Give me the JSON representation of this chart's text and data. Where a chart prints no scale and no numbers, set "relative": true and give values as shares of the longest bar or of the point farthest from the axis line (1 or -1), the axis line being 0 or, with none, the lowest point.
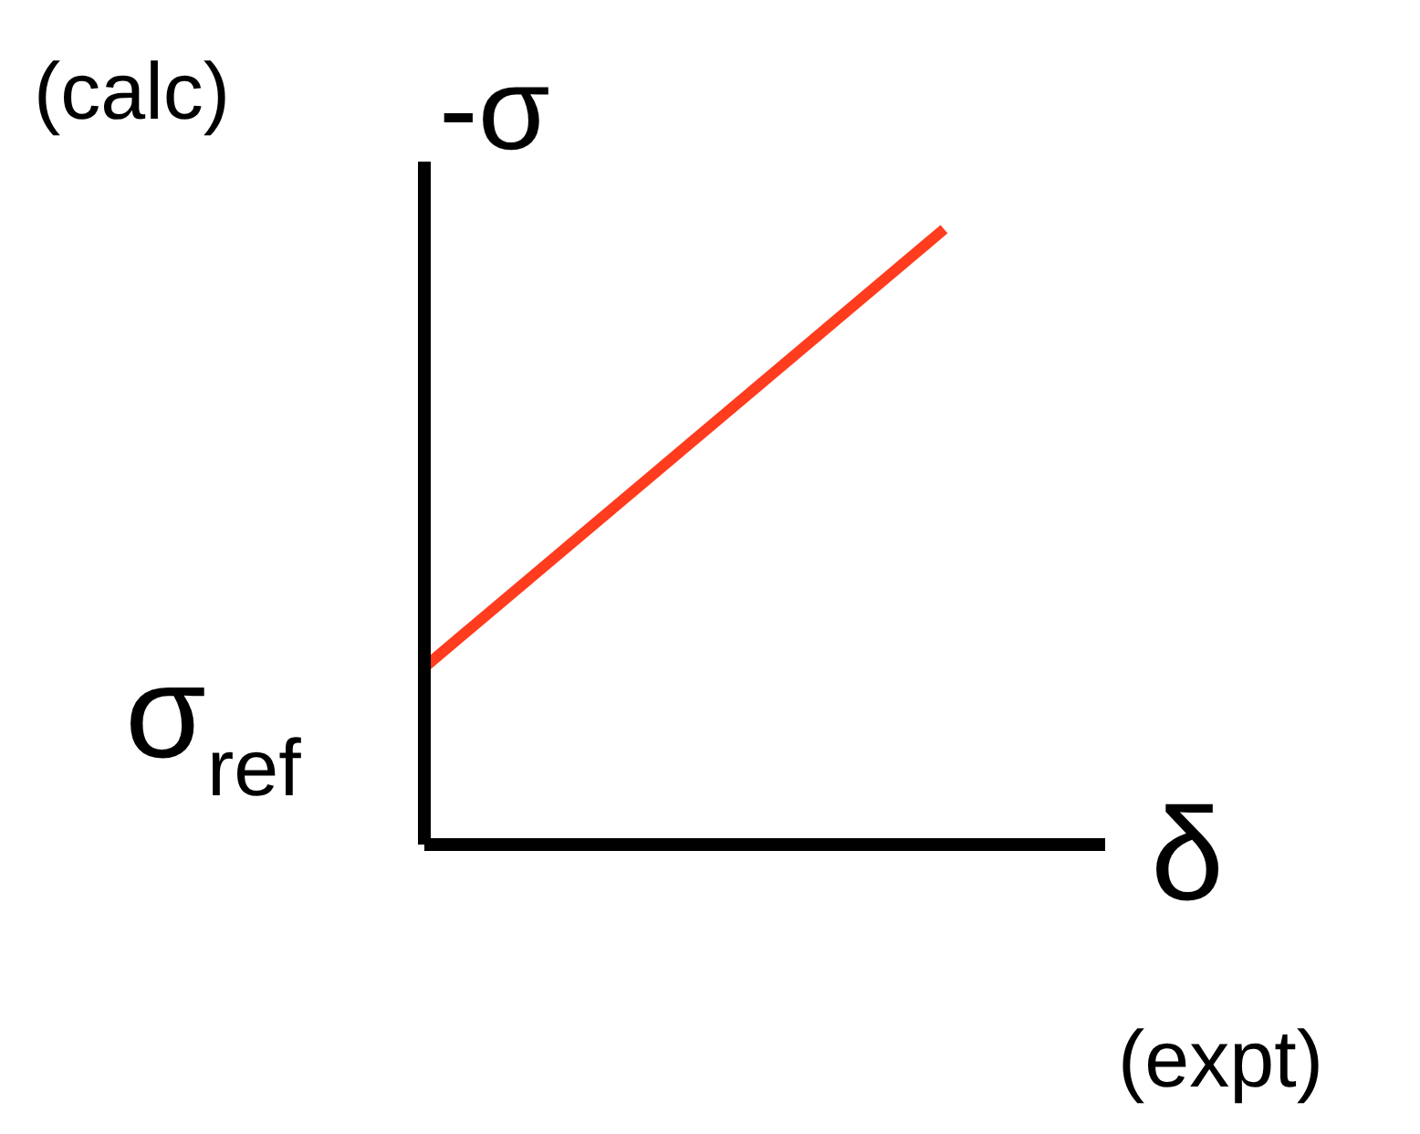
{
  "chart_data": {
    "type": "line",
    "relative": true,
    "categories": [
      null,
      null
    ],
    "series": [
      {
        "color": "#ff3c1e",
        "values": [
          0.288,
          1
        ]
      }
    ],
    "ylabel": "-σ",
    "xlabel": "δ",
    "annotations": [
      "(calc)",
      "(expt)",
      "σ$_{ref}$"
    ],
    "grid": false
  }
}
